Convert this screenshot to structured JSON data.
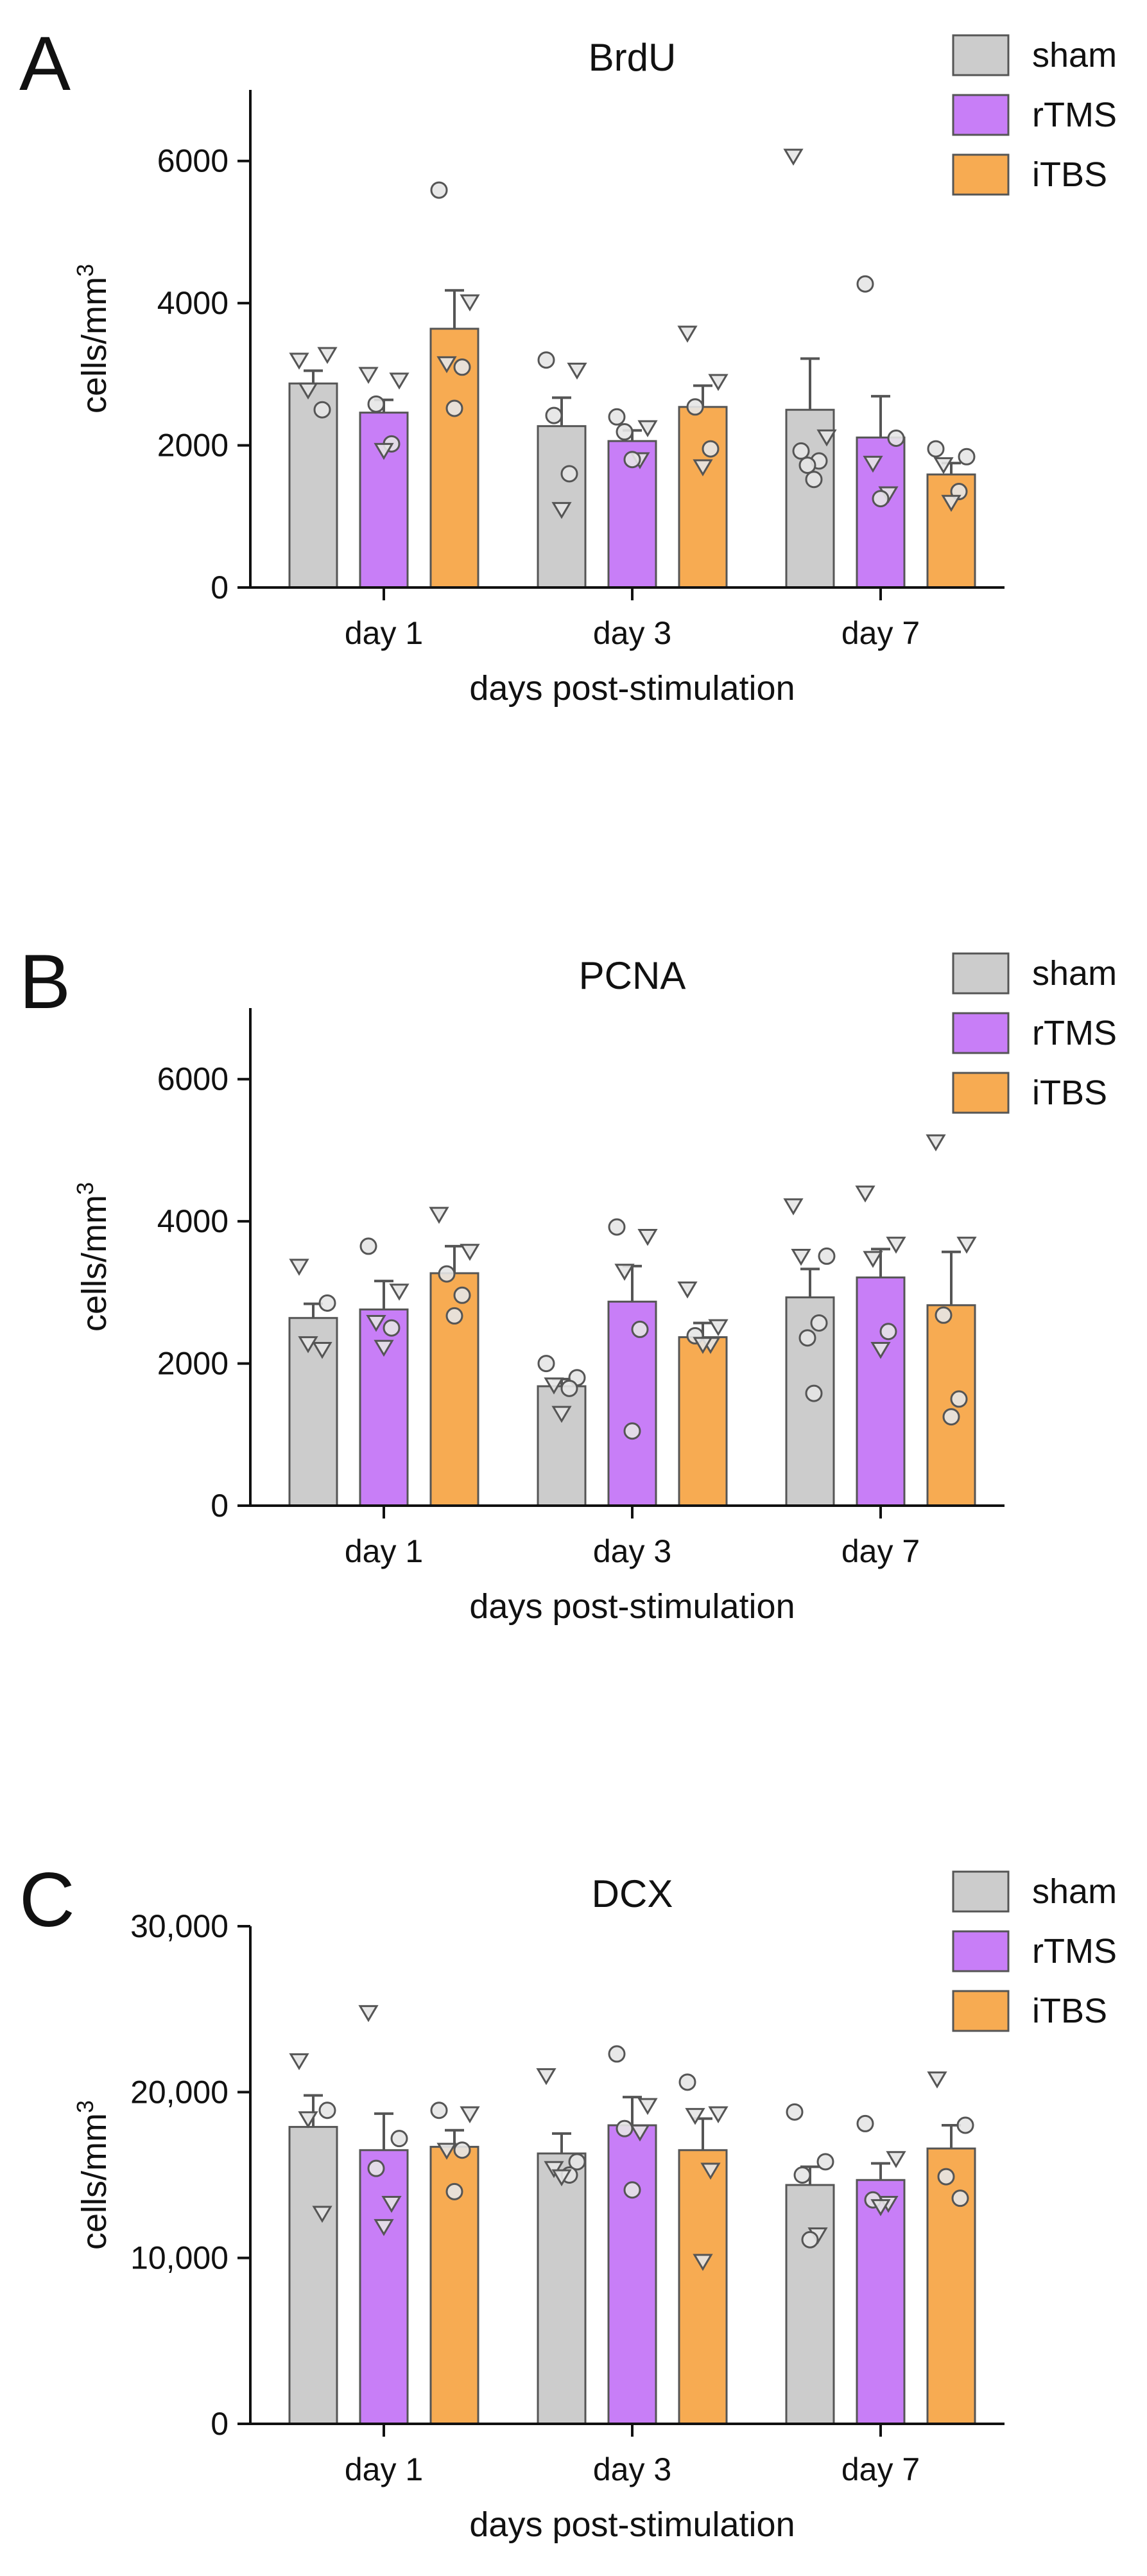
{
  "chart_data": [
    {
      "panel": "A",
      "type": "bar",
      "title": "BrdU",
      "xlabel": "days post-stimulation",
      "ylabel": "cells/mm",
      "ylabel_superscript": "3",
      "ylim": [
        0,
        7000
      ],
      "yticks": [
        0,
        2000,
        4000,
        6000
      ],
      "ytick_labels": [
        "0",
        "2000",
        "4000",
        "6000"
      ],
      "categories": [
        "day 1",
        "day 3",
        "day 7"
      ],
      "legend_position": "top-right",
      "series": [
        {
          "name": "sham",
          "color": "#cccccc",
          "values": [
            2870,
            2270,
            2500
          ],
          "errors": [
            180,
            400,
            720
          ],
          "points": [
            [
              {
                "v": 3200,
                "m": "tri"
              },
              {
                "v": 3280,
                "m": "tri"
              },
              {
                "v": 2780,
                "m": "tri"
              },
              {
                "v": 2500,
                "m": "circ"
              }
            ],
            [
              {
                "v": 3200,
                "m": "circ"
              },
              {
                "v": 3060,
                "m": "tri"
              },
              {
                "v": 2420,
                "m": "circ"
              },
              {
                "v": 1600,
                "m": "circ"
              },
              {
                "v": 1100,
                "m": "tri"
              }
            ],
            [
              {
                "v": 6070,
                "m": "tri"
              },
              {
                "v": 2120,
                "m": "tri"
              },
              {
                "v": 1920,
                "m": "circ"
              },
              {
                "v": 1780,
                "m": "circ"
              },
              {
                "v": 1720,
                "m": "circ"
              },
              {
                "v": 1520,
                "m": "circ"
              }
            ]
          ]
        },
        {
          "name": "rTMS",
          "color": "#c87ef7",
          "values": [
            2460,
            2060,
            2110
          ],
          "errors": [
            180,
            150,
            580
          ],
          "points": [
            [
              {
                "v": 3000,
                "m": "tri"
              },
              {
                "v": 2920,
                "m": "tri"
              },
              {
                "v": 2580,
                "m": "circ"
              },
              {
                "v": 2020,
                "m": "circ"
              },
              {
                "v": 1930,
                "m": "tri"
              }
            ],
            [
              {
                "v": 2400,
                "m": "circ"
              },
              {
                "v": 2250,
                "m": "tri"
              },
              {
                "v": 2190,
                "m": "circ"
              },
              {
                "v": 1800,
                "m": "tri"
              },
              {
                "v": 1800,
                "m": "circ"
              }
            ],
            [
              {
                "v": 4270,
                "m": "circ"
              },
              {
                "v": 2100,
                "m": "circ"
              },
              {
                "v": 1750,
                "m": "tri"
              },
              {
                "v": 1320,
                "m": "tri"
              },
              {
                "v": 1250,
                "m": "circ"
              }
            ]
          ]
        },
        {
          "name": "iTBS",
          "color": "#f7ab52",
          "values": [
            3640,
            2540,
            1590
          ],
          "errors": [
            540,
            300,
            160
          ],
          "points": [
            [
              {
                "v": 5590,
                "m": "circ"
              },
              {
                "v": 4020,
                "m": "tri"
              },
              {
                "v": 3150,
                "m": "tri"
              },
              {
                "v": 3100,
                "m": "circ"
              },
              {
                "v": 2520,
                "m": "circ"
              }
            ],
            [
              {
                "v": 3580,
                "m": "tri"
              },
              {
                "v": 2900,
                "m": "tri"
              },
              {
                "v": 2540,
                "m": "circ"
              },
              {
                "v": 1950,
                "m": "circ"
              },
              {
                "v": 1700,
                "m": "tri"
              }
            ],
            [
              {
                "v": 1950,
                "m": "circ"
              },
              {
                "v": 1840,
                "m": "circ"
              },
              {
                "v": 1730,
                "m": "tri"
              },
              {
                "v": 1350,
                "m": "circ"
              },
              {
                "v": 1200,
                "m": "tri"
              }
            ]
          ]
        }
      ]
    },
    {
      "panel": "B",
      "type": "bar",
      "title": "PCNA",
      "xlabel": "days post-stimulation",
      "ylabel": "cells/mm",
      "ylabel_superscript": "3",
      "ylim": [
        0,
        7000
      ],
      "yticks": [
        0,
        2000,
        4000,
        6000
      ],
      "ytick_labels": [
        "0",
        "2000",
        "4000",
        "6000"
      ],
      "categories": [
        "day 1",
        "day 3",
        "day 7"
      ],
      "legend_position": "top-right",
      "series": [
        {
          "name": "sham",
          "color": "#cccccc",
          "values": [
            2640,
            1680,
            2930
          ],
          "errors": [
            200,
            100,
            400
          ],
          "points": [
            [
              {
                "v": 3370,
                "m": "tri"
              },
              {
                "v": 2850,
                "m": "circ"
              },
              {
                "v": 2280,
                "m": "tri"
              },
              {
                "v": 2200,
                "m": "tri"
              }
            ],
            [
              {
                "v": 2000,
                "m": "circ"
              },
              {
                "v": 1800,
                "m": "circ"
              },
              {
                "v": 1700,
                "m": "tri"
              },
              {
                "v": 1650,
                "m": "circ"
              },
              {
                "v": 1300,
                "m": "tri"
              }
            ],
            [
              {
                "v": 4220,
                "m": "tri"
              },
              {
                "v": 3510,
                "m": "circ"
              },
              {
                "v": 3510,
                "m": "tri"
              },
              {
                "v": 2570,
                "m": "circ"
              },
              {
                "v": 2360,
                "m": "circ"
              },
              {
                "v": 1580,
                "m": "circ"
              }
            ]
          ]
        },
        {
          "name": "rTMS",
          "color": "#c87ef7",
          "values": [
            2760,
            2870,
            3210
          ],
          "errors": [
            400,
            500,
            400
          ],
          "points": [
            [
              {
                "v": 3650,
                "m": "circ"
              },
              {
                "v": 3020,
                "m": "tri"
              },
              {
                "v": 2580,
                "m": "tri"
              },
              {
                "v": 2500,
                "m": "circ"
              },
              {
                "v": 2230,
                "m": "tri"
              }
            ],
            [
              {
                "v": 3920,
                "m": "circ"
              },
              {
                "v": 3790,
                "m": "tri"
              },
              {
                "v": 3300,
                "m": "tri"
              },
              {
                "v": 2480,
                "m": "circ"
              },
              {
                "v": 1050,
                "m": "circ"
              }
            ],
            [
              {
                "v": 4400,
                "m": "tri"
              },
              {
                "v": 3680,
                "m": "tri"
              },
              {
                "v": 3480,
                "m": "tri"
              },
              {
                "v": 2450,
                "m": "circ"
              },
              {
                "v": 2200,
                "m": "tri"
              }
            ]
          ]
        },
        {
          "name": "iTBS",
          "color": "#f7ab52",
          "values": [
            3270,
            2370,
            2820
          ],
          "errors": [
            380,
            200,
            750
          ],
          "points": [
            [
              {
                "v": 4100,
                "m": "tri"
              },
              {
                "v": 3580,
                "m": "tri"
              },
              {
                "v": 3260,
                "m": "circ"
              },
              {
                "v": 2960,
                "m": "circ"
              },
              {
                "v": 2670,
                "m": "circ"
              }
            ],
            [
              {
                "v": 3050,
                "m": "tri"
              },
              {
                "v": 2520,
                "m": "tri"
              },
              {
                "v": 2390,
                "m": "circ"
              },
              {
                "v": 2270,
                "m": "tri"
              },
              {
                "v": 2270,
                "m": "tri"
              }
            ],
            [
              {
                "v": 5120,
                "m": "tri"
              },
              {
                "v": 3680,
                "m": "tri"
              },
              {
                "v": 2680,
                "m": "circ"
              },
              {
                "v": 1500,
                "m": "circ"
              },
              {
                "v": 1250,
                "m": "circ"
              }
            ]
          ]
        }
      ]
    },
    {
      "panel": "C",
      "type": "bar",
      "title": "DCX",
      "xlabel": "days post-stimulation",
      "ylabel": "cells/mm",
      "ylabel_superscript": "3",
      "ylim": [
        0,
        30000
      ],
      "yticks": [
        0,
        10000,
        20000,
        30000
      ],
      "ytick_labels": [
        "0",
        "10,000",
        "20,000",
        "30,000"
      ],
      "categories": [
        "day 1",
        "day 3",
        "day 7"
      ],
      "legend_position": "top-right",
      "series": [
        {
          "name": "sham",
          "color": "#cccccc",
          "values": [
            17900,
            16300,
            14400
          ],
          "errors": [
            1900,
            1200,
            1100
          ],
          "points": [
            [
              {
                "v": 21900,
                "m": "tri"
              },
              {
                "v": 18900,
                "m": "circ"
              },
              {
                "v": 18400,
                "m": "tri"
              },
              {
                "v": 12700,
                "m": "tri"
              }
            ],
            [
              {
                "v": 21000,
                "m": "tri"
              },
              {
                "v": 15800,
                "m": "circ"
              },
              {
                "v": 15400,
                "m": "tri"
              },
              {
                "v": 15000,
                "m": "circ"
              },
              {
                "v": 14900,
                "m": "tri"
              }
            ],
            [
              {
                "v": 18800,
                "m": "circ"
              },
              {
                "v": 15800,
                "m": "circ"
              },
              {
                "v": 15000,
                "m": "circ"
              },
              {
                "v": 11400,
                "m": "tri"
              },
              {
                "v": 11100,
                "m": "circ"
              }
            ]
          ]
        },
        {
          "name": "rTMS",
          "color": "#c87ef7",
          "values": [
            16500,
            18000,
            14700
          ],
          "errors": [
            2200,
            1700,
            1000
          ],
          "points": [
            [
              {
                "v": 24800,
                "m": "tri"
              },
              {
                "v": 17200,
                "m": "circ"
              },
              {
                "v": 15400,
                "m": "circ"
              },
              {
                "v": 13300,
                "m": "tri"
              },
              {
                "v": 11900,
                "m": "tri"
              }
            ],
            [
              {
                "v": 22300,
                "m": "circ"
              },
              {
                "v": 19200,
                "m": "tri"
              },
              {
                "v": 17800,
                "m": "circ"
              },
              {
                "v": 17600,
                "m": "tri"
              },
              {
                "v": 14100,
                "m": "circ"
              }
            ],
            [
              {
                "v": 18100,
                "m": "circ"
              },
              {
                "v": 16000,
                "m": "tri"
              },
              {
                "v": 13500,
                "m": "circ"
              },
              {
                "v": 13300,
                "m": "tri"
              },
              {
                "v": 13100,
                "m": "tri"
              }
            ]
          ]
        },
        {
          "name": "iTBS",
          "color": "#f7ab52",
          "values": [
            16700,
            16500,
            16600
          ],
          "errors": [
            1000,
            1900,
            1400
          ],
          "points": [
            [
              {
                "v": 18900,
                "m": "circ"
              },
              {
                "v": 18700,
                "m": "tri"
              },
              {
                "v": 16500,
                "m": "tri"
              },
              {
                "v": 16500,
                "m": "circ"
              },
              {
                "v": 14000,
                "m": "circ"
              }
            ],
            [
              {
                "v": 20600,
                "m": "circ"
              },
              {
                "v": 18700,
                "m": "tri"
              },
              {
                "v": 18600,
                "m": "tri"
              },
              {
                "v": 15300,
                "m": "tri"
              },
              {
                "v": 9800,
                "m": "tri"
              }
            ],
            [
              {
                "v": 20800,
                "m": "tri"
              },
              {
                "v": 18000,
                "m": "circ"
              },
              {
                "v": 14900,
                "m": "circ"
              },
              {
                "v": 13600,
                "m": "circ"
              }
            ]
          ]
        }
      ]
    }
  ]
}
